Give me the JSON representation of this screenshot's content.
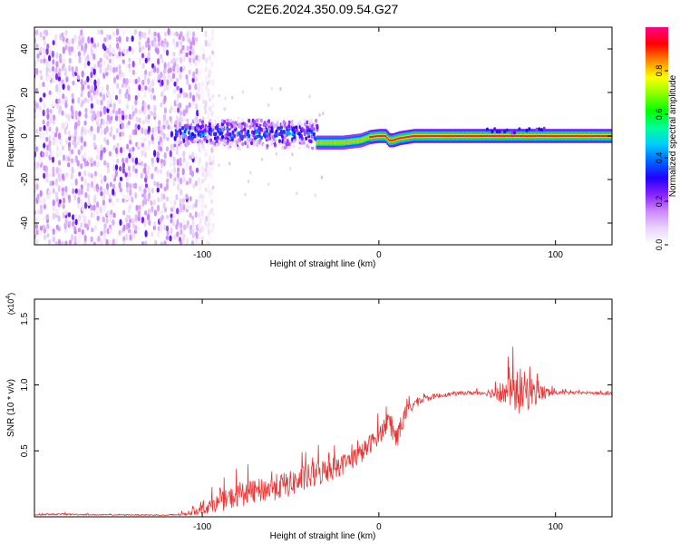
{
  "title": "C2E6.2024.350.09.54.G27",
  "chart_data": [
    {
      "type": "heatmap",
      "xlabel": "Height of straight line (km)",
      "ylabel": "Frequency (Hz)",
      "xlim": [
        -195,
        132
      ],
      "ylim": [
        -50,
        50
      ],
      "xticks": [
        -100,
        0,
        100
      ],
      "yticks": [
        -40,
        -20,
        0,
        20,
        40
      ],
      "colorbar": {
        "label": "Normalized spectral amplitude",
        "range": [
          0,
          1
        ],
        "ticks": [
          "0.0",
          "0.2",
          "0.4",
          "0.6",
          "0.8"
        ],
        "colors": [
          "#ffffff",
          "#e8d4f8",
          "#cc88ff",
          "#8822ff",
          "#2200ff",
          "#0066ff",
          "#00ccff",
          "#00ff99",
          "#00ff00",
          "#88ff00",
          "#ffff00",
          "#ff8800",
          "#ff0000",
          "#ff0088"
        ]
      },
      "regions": [
        {
          "name": "noise",
          "x": [
            -195,
            -100
          ],
          "freq": [
            -50,
            50
          ],
          "amplitude": 0.1
        },
        {
          "name": "onset",
          "x": [
            -115,
            -35
          ],
          "freq": [
            -5,
            7
          ],
          "amplitude": 0.4
        },
        {
          "name": "carrier",
          "x": [
            -35,
            132
          ],
          "freq_center": [
            -3,
            0
          ],
          "amplitude": 1.0
        }
      ],
      "carrier_track": {
        "x": [
          -35,
          -20,
          -10,
          -5,
          0,
          4,
          6,
          8,
          12,
          20,
          40,
          80,
          132
        ],
        "freq": [
          -3,
          -3,
          -2,
          -0.5,
          0,
          0,
          -2,
          -2,
          -1,
          0,
          0,
          0,
          0
        ]
      }
    },
    {
      "type": "line",
      "xlabel": "Height of straight line (km)",
      "ylabel": "SNR (10 * v/v)",
      "y_multiplier": "(x10",
      "y_multiplier_exp": "4",
      "y_multiplier_close": ")",
      "xlim": [
        -195,
        132
      ],
      "ylim": [
        0,
        1.65
      ],
      "xticks": [
        -100,
        0,
        100
      ],
      "yticks": [
        0.5,
        1.0,
        1.5
      ],
      "ytick_labels": [
        "0.5",
        "1.0",
        "1.5"
      ],
      "color": "#ee3333",
      "x": [
        -195,
        -180,
        -160,
        -140,
        -120,
        -110,
        -100,
        -90,
        -80,
        -70,
        -60,
        -50,
        -40,
        -30,
        -20,
        -10,
        0,
        5,
        10,
        15,
        20,
        30,
        40,
        50,
        60,
        70,
        80,
        90,
        100,
        110,
        120,
        132
      ],
      "y": [
        0.015,
        0.02,
        0.015,
        0.015,
        0.012,
        0.02,
        0.06,
        0.11,
        0.16,
        0.19,
        0.22,
        0.25,
        0.3,
        0.35,
        0.4,
        0.48,
        0.62,
        0.72,
        0.6,
        0.78,
        0.86,
        0.91,
        0.93,
        0.94,
        0.94,
        0.94,
        0.95,
        0.94,
        0.94,
        0.94,
        0.94,
        0.93
      ],
      "noise": [
        0.004,
        0.006,
        0.004,
        0.004,
        0.004,
        0.012,
        0.04,
        0.07,
        0.09,
        0.09,
        0.1,
        0.1,
        0.1,
        0.1,
        0.08,
        0.08,
        0.07,
        0.08,
        0.1,
        0.06,
        0.04,
        0.02,
        0.015,
        0.015,
        0.015,
        0.08,
        0.18,
        0.08,
        0.015,
        0.012,
        0.01,
        0.01
      ]
    }
  ]
}
